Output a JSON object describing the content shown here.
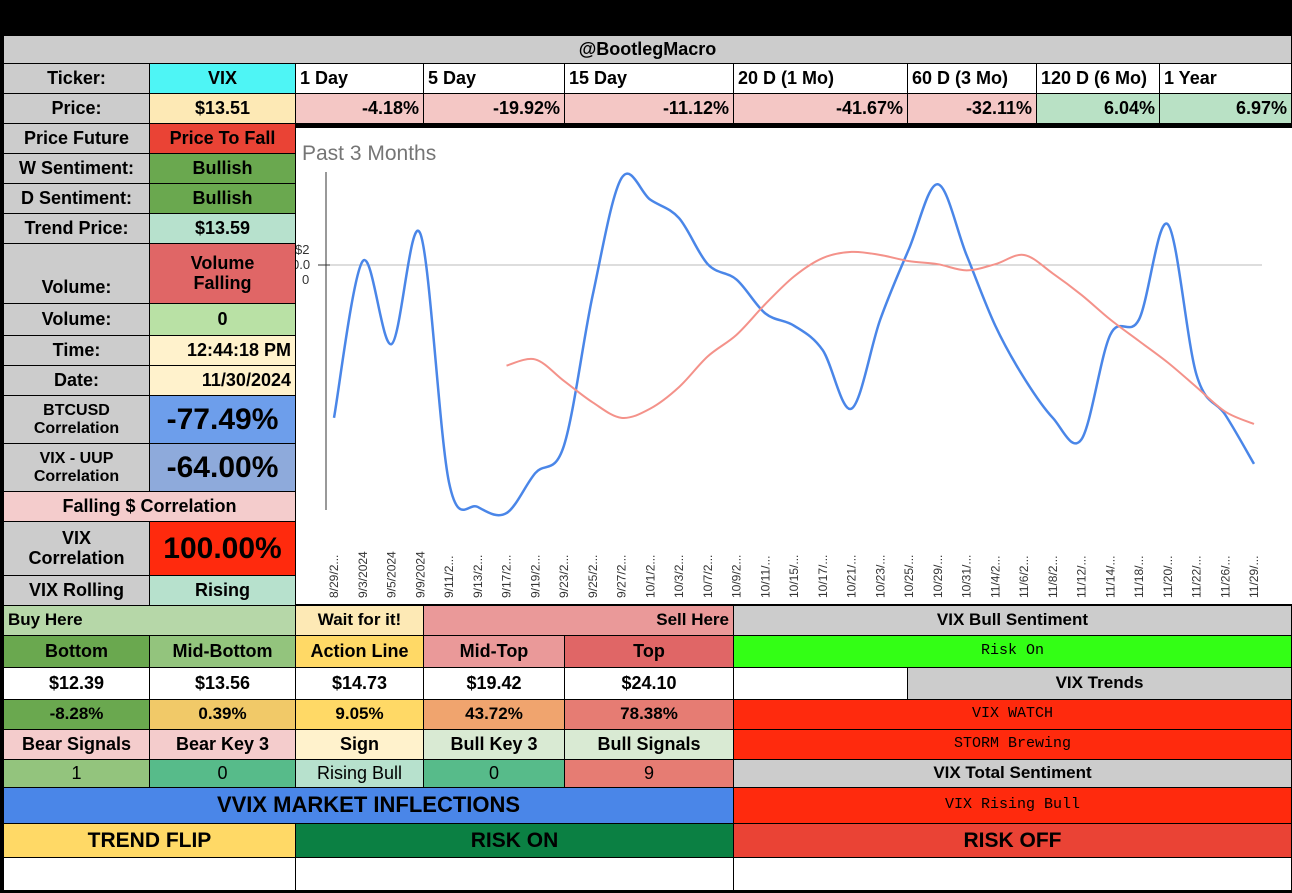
{
  "header": {
    "title": "@BootlegMacro"
  },
  "colors": {
    "cyan": "#4ef5f5",
    "cream": "#fde9b5",
    "red_neg": "#f4c7c5",
    "green_pos": "#b9e1c5",
    "green_dark": "#6aa84f",
    "mint": "#b7e1cd",
    "orange_red": "#ea4335",
    "bright_red": "#ff2a0d",
    "blue": "#6d9eeb",
    "blue_strong": "#4a86e8",
    "pink": "#f4cccc",
    "salmon": "#e06666",
    "lime": "#33ff15",
    "gray": "#cccccc",
    "yellow": "#ffd966",
    "dark_green": "#0b8043"
  },
  "ticker_row": {
    "label": "Ticker:",
    "ticker": "VIX",
    "periods": [
      "1 Day",
      "5 Day",
      "15 Day",
      "20 D (1 Mo)",
      "60 D (3 Mo)",
      "120 D (6 Mo)",
      "1 Year"
    ]
  },
  "price_row": {
    "label": "Price:",
    "price": "$13.51",
    "changes": [
      "-4.18%",
      "-19.92%",
      "-11.12%",
      "-41.67%",
      "-32.11%",
      "6.04%",
      "6.97%"
    ]
  },
  "stats": {
    "price_future": {
      "label": "Price Future",
      "value": "Price To Fall"
    },
    "w_sentiment": {
      "label": "W Sentiment:",
      "value": "Bullish"
    },
    "d_sentiment": {
      "label": "D Sentiment:",
      "value": "Bullish"
    },
    "trend_price": {
      "label": "Trend Price:",
      "value": "$13.59"
    },
    "volume_trend": {
      "label": "Volume:",
      "value_line1": "Volume",
      "value_line2": "Falling"
    },
    "volume": {
      "label": "Volume:",
      "value": "0"
    },
    "time": {
      "label": "Time:",
      "value": "12:44:18 PM"
    },
    "date": {
      "label": "Date:",
      "value": "11/30/2024"
    },
    "btc": {
      "label_line1": "BTCUSD",
      "label_line2": "Correlation",
      "value": "-77.49%"
    },
    "uup": {
      "label_line1": "VIX - UUP",
      "label_line2": "Correlation",
      "value": "-64.00%"
    },
    "falling_corr": {
      "label": "Falling $ Correlation"
    },
    "vix_corr": {
      "label_line1": "VIX",
      "label_line2": "Correlation",
      "value": "100.00%"
    },
    "vix_rolling": {
      "label": "VIX Rolling",
      "value": "Rising"
    }
  },
  "chart_data": {
    "type": "line",
    "title": "Past 3 Months",
    "y_tick_labels": [
      "$2",
      "0.0",
      "0"
    ],
    "x": [
      "8/29/2...",
      "9/3/2024",
      "9/5/2024",
      "9/9/2024",
      "9/11/2...",
      "9/13/2...",
      "9/17/2...",
      "9/19/2...",
      "9/23/2...",
      "9/25/2...",
      "9/27/2...",
      "10/1/2...",
      "10/3/2...",
      "10/7/2...",
      "10/9/2...",
      "10/11/...",
      "10/15/...",
      "10/17/...",
      "10/21/...",
      "10/23/...",
      "10/25/...",
      "10/29/...",
      "10/31/...",
      "11/4/2...",
      "11/6/2...",
      "11/8/2...",
      "11/12/...",
      "11/14/...",
      "11/18/...",
      "11/20/...",
      "11/22/...",
      "11/26/...",
      "11/29/..."
    ],
    "series": [
      {
        "color": "#4a86e8",
        "values": [
          15.0,
          20.1,
          17.4,
          21.0,
          12.9,
          12.1,
          11.9,
          13.2,
          14.1,
          19.0,
          22.8,
          22.1,
          21.5,
          20.0,
          19.5,
          18.4,
          18.0,
          17.2,
          15.3,
          18.2,
          20.5,
          22.6,
          20.3,
          18.0,
          16.3,
          15.0,
          14.3,
          17.7,
          18.2,
          21.3,
          16.4,
          15.1,
          13.5
        ]
      },
      {
        "color": "#f4928a",
        "values": [
          null,
          null,
          null,
          null,
          null,
          null,
          16.7,
          16.9,
          16.2,
          15.5,
          15.0,
          15.3,
          16.0,
          17.0,
          17.7,
          18.7,
          19.6,
          20.2,
          20.4,
          20.3,
          20.1,
          20.0,
          19.8,
          20.0,
          20.3,
          19.7,
          19.0,
          18.2,
          17.5,
          16.8,
          16.0,
          15.2,
          14.8
        ]
      }
    ]
  },
  "levels": {
    "buy_here": "Buy Here",
    "wait": "Wait for it!",
    "sell_here": "Sell Here",
    "headers": [
      "Bottom",
      "Mid-Bottom",
      "Action Line",
      "Mid-Top",
      "Top"
    ],
    "prices": [
      "$12.39",
      "$13.56",
      "$14.73",
      "$19.42",
      "$24.10"
    ],
    "pcts": [
      "-8.28%",
      "0.39%",
      "9.05%",
      "43.72%",
      "78.38%"
    ]
  },
  "signals": {
    "headers": [
      "Bear Signals",
      "Bear Key 3",
      "Sign",
      "Bull Key 3",
      "Bull Signals"
    ],
    "values": [
      "1",
      "0",
      "Rising Bull",
      "0",
      "9"
    ]
  },
  "right_panel": {
    "bull_sentiment_title": "VIX Bull Sentiment",
    "risk_on": "Risk On",
    "trends_title": "VIX Trends",
    "vix_watch": "VIX WATCH",
    "storm": "STORM Brewing",
    "total_title": "VIX Total Sentiment",
    "rising_bull": "VIX Rising Bull"
  },
  "inflections": {
    "title": "VVIX MARKET INFLECTIONS",
    "trend_flip": "TREND FLIP",
    "risk_on": "RISK ON",
    "risk_off": "RISK OFF"
  }
}
